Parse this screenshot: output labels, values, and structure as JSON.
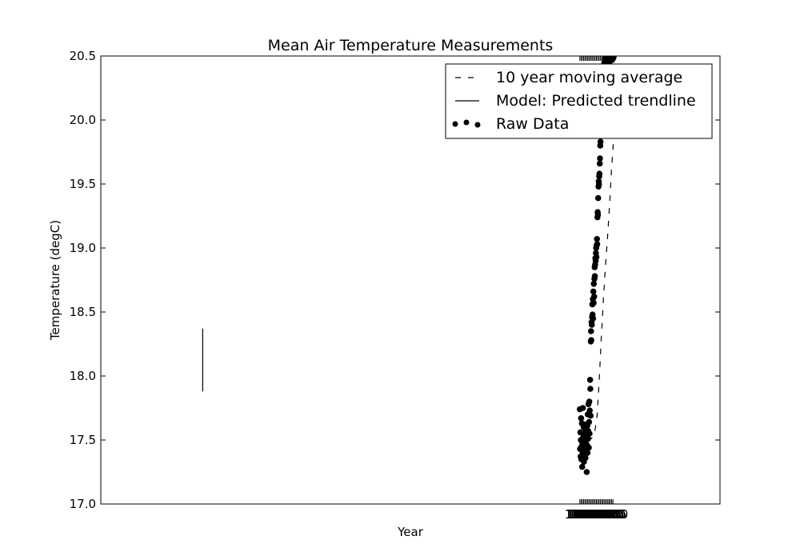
{
  "chart_data": {
    "type": "scatter",
    "title": "Mean Air Temperature Measurements",
    "xlabel": "Year",
    "ylabel": "Temperature (degC)",
    "xlim": [
      0,
      2430
    ],
    "ylim": [
      17.0,
      20.5
    ],
    "yticks": [
      "17.0",
      "17.5",
      "18.0",
      "18.5",
      "19.0",
      "19.5",
      "20.0",
      "20.5"
    ],
    "grid": false,
    "legend_position": "top-right",
    "legend": [
      {
        "label": "10 year moving average",
        "style": "dashed"
      },
      {
        "label": "Model: Predicted trendline",
        "style": "solid"
      },
      {
        "label": "Raw Data",
        "style": "markers"
      }
    ],
    "xtick_years": [
      1880,
      1885,
      1890,
      1895,
      1900,
      1905,
      1910,
      1915,
      1920,
      1925,
      1930,
      1935,
      1940,
      1945,
      1950,
      1955,
      1960,
      1965,
      1970,
      1975,
      1980,
      1985,
      1990,
      1995,
      2000,
      2005,
      2010
    ],
    "xtick_labels": [
      "1880",
      "1885",
      "1890",
      "1895",
      "1900",
      "1905",
      "1910",
      "1915",
      "1920",
      "1925",
      "1930",
      "1935",
      "1940",
      "1945",
      "1950",
      "1955",
      "1960",
      "1965",
      "1970",
      "1975",
      "1980",
      "1985",
      "1990",
      "1995",
      "2000",
      "2005",
      "2010"
    ],
    "trendline": {
      "x": [
        400,
        400
      ],
      "y": [
        17.88,
        18.37
      ]
    },
    "moving_average": {
      "x": [
        1885,
        1892,
        1900,
        1908,
        1916,
        1924,
        1932,
        1940,
        1948,
        1956,
        1964,
        1972,
        1980,
        1988,
        1996,
        2004,
        2012
      ],
      "y": [
        17.47,
        17.45,
        17.48,
        17.47,
        17.5,
        17.51,
        17.53,
        17.58,
        17.7,
        17.96,
        18.3,
        18.58,
        18.85,
        19.06,
        19.32,
        19.6,
        19.84
      ]
    },
    "raw_data": {
      "x": [
        1880,
        1881,
        1882,
        1883,
        1884,
        1885,
        1886,
        1887,
        1888,
        1889,
        1890,
        1891,
        1892,
        1893,
        1894,
        1895,
        1896,
        1897,
        1898,
        1899,
        1900,
        1901,
        1902,
        1903,
        1904,
        1905,
        1906,
        1907,
        1908,
        1909,
        1910,
        1911,
        1912,
        1913,
        1914,
        1915,
        1916,
        1917,
        1918,
        1919,
        1920,
        1921,
        1922,
        1923,
        1924,
        1925,
        1926,
        1927,
        1928,
        1929,
        1930,
        1931,
        1932,
        1933,
        1934,
        1935,
        1936,
        1937,
        1938,
        1939,
        1940,
        1941,
        1942,
        1943,
        1944,
        1945,
        1946,
        1947,
        1948,
        1949,
        1950,
        1951,
        1952,
        1953,
        1954,
        1955,
        1956,
        1957,
        1958,
        1959,
        1960,
        1961,
        1962,
        1963,
        1964,
        1965,
        1966,
        1967,
        1968,
        1969,
        1970,
        1971,
        1972,
        1973,
        1974,
        1975,
        1976,
        1977,
        1978,
        1979,
        1980,
        1981,
        1982,
        1983,
        1984,
        1985,
        1986,
        1987,
        1988,
        1989,
        1990,
        1991,
        1992,
        1993,
        1994,
        1995,
        1996,
        1997,
        1998,
        1999,
        2000,
        2001,
        2002,
        2003,
        2004,
        2005,
        2006,
        2007,
        2008,
        2009,
        2010,
        2011,
        2012
      ],
      "y": [
        17.74,
        17.43,
        17.56,
        17.37,
        17.5,
        17.67,
        17.35,
        17.45,
        17.63,
        17.29,
        17.48,
        17.4,
        17.75,
        17.52,
        17.42,
        17.6,
        17.33,
        17.47,
        17.38,
        17.55,
        17.45,
        17.62,
        17.36,
        17.49,
        17.58,
        17.41,
        17.53,
        17.25,
        17.46,
        17.61,
        17.4,
        17.7,
        17.51,
        17.57,
        17.78,
        17.44,
        17.64,
        17.8,
        17.55,
        17.73,
        17.97,
        17.9,
        17.69,
        18.27,
        18.35,
        18.28,
        18.42,
        18.4,
        18.46,
        18.56,
        18.48,
        18.6,
        18.45,
        18.66,
        18.57,
        18.72,
        18.62,
        18.76,
        18.85,
        18.78,
        18.87,
        18.92,
        18.9,
        18.96,
        19.0,
        18.93,
        19.02,
        19.07,
        19.03,
        19.24,
        19.28,
        19.26,
        19.39,
        19.48,
        19.52,
        19.5,
        19.56,
        19.58,
        19.66,
        19.7,
        19.8,
        19.83,
        19.92,
        20.03,
        19.98,
        20.08,
        20.15,
        20.05,
        20.22,
        20.12,
        20.3,
        20.18,
        20.26,
        20.35,
        20.4,
        20.32,
        20.45,
        20.38,
        20.43,
        20.48,
        20.5,
        20.47,
        20.49,
        20.46,
        20.5,
        20.44,
        20.49,
        20.47,
        20.5,
        20.48,
        20.49,
        20.46,
        20.5,
        20.45,
        20.48,
        20.5,
        20.47,
        20.49,
        20.46,
        20.5,
        20.48,
        20.5,
        20.47,
        20.49,
        20.5,
        20.48,
        20.5,
        20.47,
        20.49,
        20.5,
        20.48,
        20.5,
        20.49
      ]
    }
  }
}
